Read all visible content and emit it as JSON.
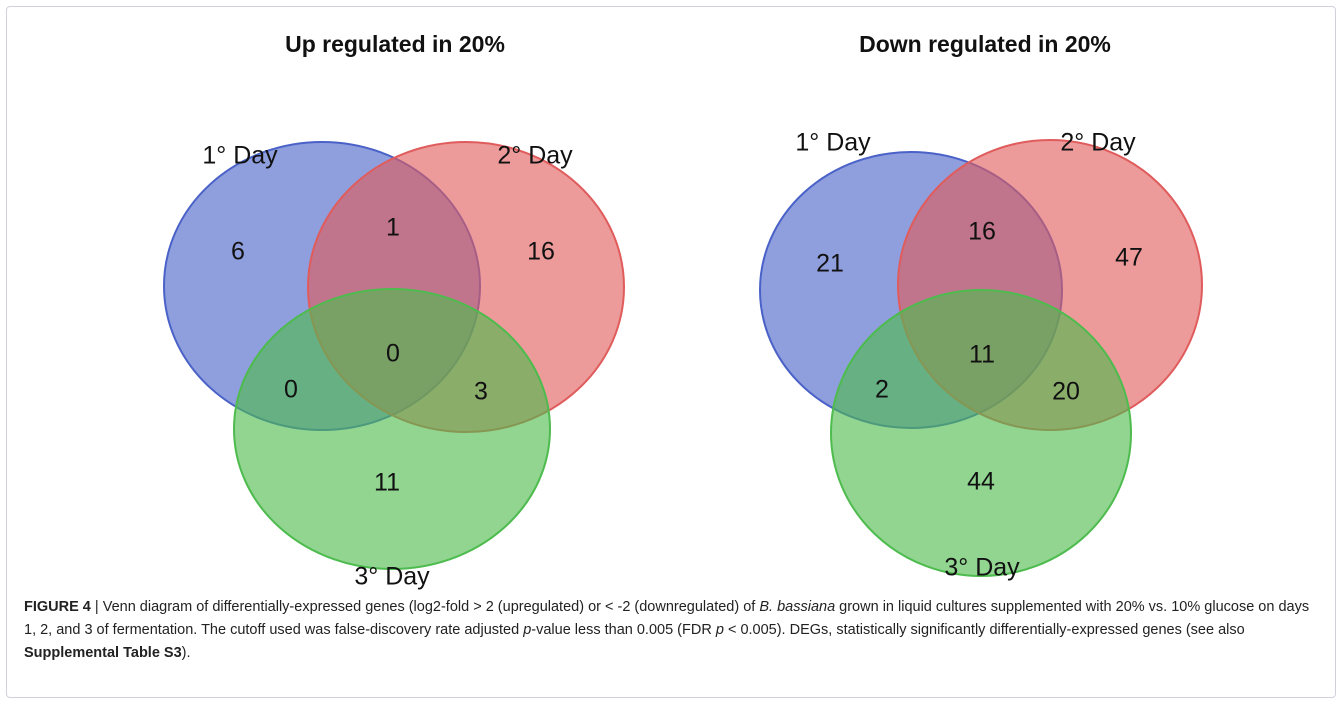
{
  "figures": [
    {
      "title": "Up regulated in 20%",
      "sets": [
        {
          "label": "1° Day",
          "color": "#4a62c8"
        },
        {
          "label": "2° Day",
          "color": "#e05c5c"
        },
        {
          "label": "3° Day",
          "color": "#4dbb4d"
        }
      ],
      "regions": {
        "only_1": 6,
        "one_two": 1,
        "only_2": 16,
        "all": 0,
        "one_three": 0,
        "two_three": 3,
        "only_3": 11
      }
    },
    {
      "title": "Down regulated in 20%",
      "sets": [
        {
          "label": "1° Day",
          "color": "#4a62c8"
        },
        {
          "label": "2° Day",
          "color": "#e05c5c"
        },
        {
          "label": "3° Day",
          "color": "#4dbb4d"
        }
      ],
      "regions": {
        "only_1": 21,
        "one_two": 16,
        "only_2": 47,
        "all": 11,
        "one_three": 2,
        "two_three": 20,
        "only_3": 44
      }
    }
  ],
  "caption": [
    "FIGURE 4",
    " | Venn diagram of differentially-expressed genes (log2-fold > 2 (upregulated) or < -2 (downregulated) of ",
    "B. bassiana",
    " grown in liquid cultures supplemented with 20% vs. 10% glucose on days 1, 2, and 3 of fermentation. The cutoff used was false-discovery rate adjusted ",
    "p",
    "-value less than 0.005 (FDR ",
    "p",
    " < 0.005). DEGs, statistically significantly differentially-expressed genes (see also ",
    "Supplemental Table S3",
    ")."
  ]
}
